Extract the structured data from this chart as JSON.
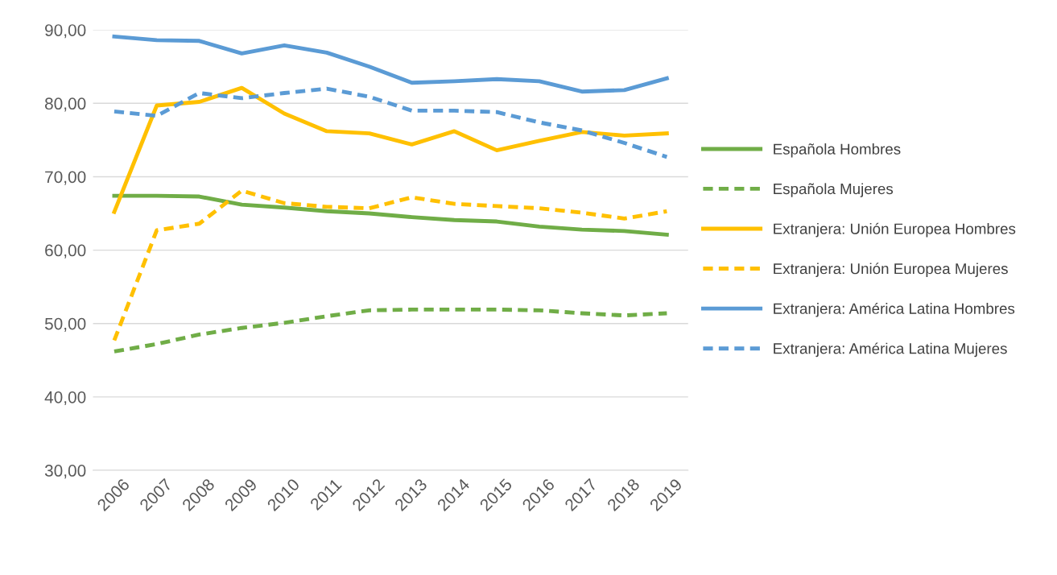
{
  "chart_data": {
    "type": "line",
    "categories": [
      "2006",
      "2007",
      "2008",
      "2009",
      "2010",
      "2011",
      "2012",
      "2013",
      "2014",
      "2015",
      "2016",
      "2017",
      "2018",
      "2019"
    ],
    "series": [
      {
        "name": "Española Hombres",
        "color": "#70ad47",
        "line_style": "solid",
        "values": [
          67.4,
          67.4,
          67.3,
          66.2,
          65.8,
          65.3,
          65.0,
          64.5,
          64.1,
          63.9,
          63.2,
          62.8,
          62.6,
          62.1
        ]
      },
      {
        "name": "Española Mujeres",
        "color": "#70ad47",
        "line_style": "dashed",
        "values": [
          46.2,
          47.2,
          48.5,
          49.4,
          50.1,
          51.0,
          51.8,
          51.9,
          51.9,
          51.9,
          51.8,
          51.4,
          51.1,
          51.4
        ]
      },
      {
        "name": "Extranjera: Unión Europea Hombres",
        "color": "#ffc000",
        "line_style": "solid",
        "values": [
          65.2,
          79.7,
          80.2,
          82.1,
          78.6,
          76.2,
          75.9,
          74.4,
          76.2,
          73.6,
          74.9,
          76.1,
          75.6,
          75.9
        ]
      },
      {
        "name": "Extranjera: Unión Europea Mujeres",
        "color": "#ffc000",
        "line_style": "dashed",
        "values": [
          47.7,
          62.7,
          63.6,
          68.1,
          66.4,
          65.9,
          65.7,
          67.2,
          66.3,
          66.0,
          65.7,
          65.1,
          64.3,
          65.3
        ]
      },
      {
        "name": "Extranjera: América Latina Hombres",
        "color": "#5b9bd5",
        "line_style": "solid",
        "values": [
          89.1,
          88.6,
          88.5,
          86.8,
          87.9,
          86.9,
          85.0,
          82.8,
          83.0,
          83.3,
          83.0,
          81.6,
          81.8,
          83.4
        ]
      },
      {
        "name": "Extranjera: América Latina Mujeres",
        "color": "#5b9bd5",
        "line_style": "dashed",
        "values": [
          78.9,
          78.3,
          81.4,
          80.7,
          81.4,
          82.0,
          80.9,
          79.0,
          79.0,
          78.8,
          77.4,
          76.3,
          74.6,
          72.7
        ]
      }
    ],
    "ylim": [
      30,
      90
    ],
    "yticks": [
      {
        "value": 30,
        "label": "30,00"
      },
      {
        "value": 40,
        "label": "40,00"
      },
      {
        "value": 50,
        "label": "50,00"
      },
      {
        "value": 60,
        "label": "60,00"
      },
      {
        "value": 70,
        "label": "70,00"
      },
      {
        "value": 80,
        "label": "80,00"
      },
      {
        "value": 90,
        "label": "90,00"
      }
    ],
    "grid": "y",
    "legend": "right",
    "marker": "none"
  }
}
